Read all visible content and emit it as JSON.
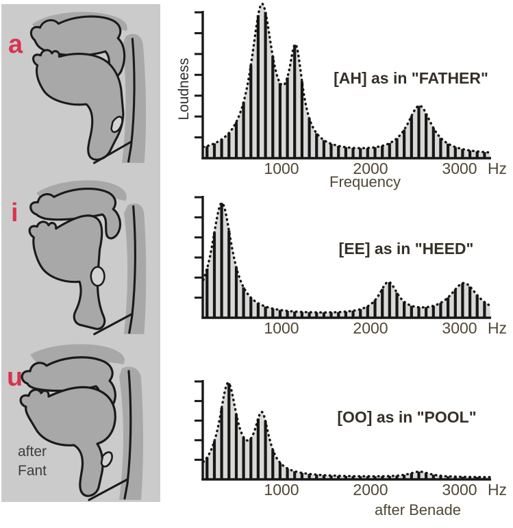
{
  "page": {
    "background": "#ffffff"
  },
  "left_panel": {
    "background": "#cbcbcb",
    "caption_line1": "after",
    "caption_line2": "Fant",
    "caption_color": "#3c3c3c",
    "diagram_fill": "#a8a8a8",
    "diagram_outline": "#1a1a1a",
    "vowels": [
      {
        "label": "a",
        "color": "#d8344e",
        "description": "vocal-tract-profile-open-a"
      },
      {
        "label": "i",
        "color": "#d8344e",
        "description": "vocal-tract-profile-front-i"
      },
      {
        "label": "u",
        "color": "#d8344e",
        "description": "vocal-tract-profile-back-u"
      }
    ]
  },
  "chart_data": {
    "type": "bar",
    "subtype": "harmonic-spectrum-with-dashed-formant-envelope",
    "style": {
      "bar_color": "#171717",
      "fill_color": "#d8d8d6",
      "envelope_color": "#141414",
      "axis_color": "#171717",
      "tick_label_color": "#4f4734",
      "annotation_color": "#353026",
      "grid": "off",
      "legend": "none"
    },
    "charts": [
      {
        "title": "[AH] as in \"FATHER\"",
        "ylabel": "Loudness",
        "xlabel": "Frequency",
        "x_unit": "Hz",
        "x_ticks": [
          1000,
          2000,
          3000
        ],
        "x_range_hz": [
          115,
          3350
        ],
        "harmonic_spacing_hz": 82,
        "y_tick_count": 7,
        "envelope_baseline": 0.02,
        "formants": [
          {
            "center_hz": 780,
            "relative_amplitude": 1.0,
            "half_width_hz": 150
          },
          {
            "center_hz": 1160,
            "relative_amplitude": 0.62,
            "half_width_hz": 95
          },
          {
            "center_hz": 2550,
            "relative_amplitude": 0.33,
            "half_width_hz": 170
          }
        ]
      },
      {
        "title": "[EE] as in \"HEED\"",
        "ylabel": null,
        "xlabel": null,
        "x_unit": "Hz",
        "x_ticks": [
          1000,
          2000,
          3000
        ],
        "x_range_hz": [
          115,
          3350
        ],
        "harmonic_spacing_hz": 82,
        "y_tick_count": 6,
        "envelope_baseline": 0.02,
        "formants": [
          {
            "center_hz": 330,
            "relative_amplitude": 1.0,
            "half_width_hz": 140
          },
          {
            "center_hz": 2200,
            "relative_amplitude": 0.28,
            "half_width_hz": 130
          },
          {
            "center_hz": 3050,
            "relative_amplitude": 0.28,
            "half_width_hz": 190
          }
        ]
      },
      {
        "title": "[OO] as in \"POOL\"",
        "ylabel": null,
        "xlabel": null,
        "footer": "after Benade",
        "x_unit": "Hz",
        "x_ticks": [
          1000,
          2000,
          3000
        ],
        "x_range_hz": [
          115,
          3350
        ],
        "harmonic_spacing_hz": 82,
        "y_tick_count": 5,
        "envelope_baseline": 0.02,
        "formants": [
          {
            "center_hz": 400,
            "relative_amplitude": 1.0,
            "half_width_hz": 120
          },
          {
            "center_hz": 780,
            "relative_amplitude": 0.63,
            "half_width_hz": 100
          },
          {
            "center_hz": 2550,
            "relative_amplitude": 0.06,
            "half_width_hz": 140
          }
        ]
      }
    ]
  }
}
